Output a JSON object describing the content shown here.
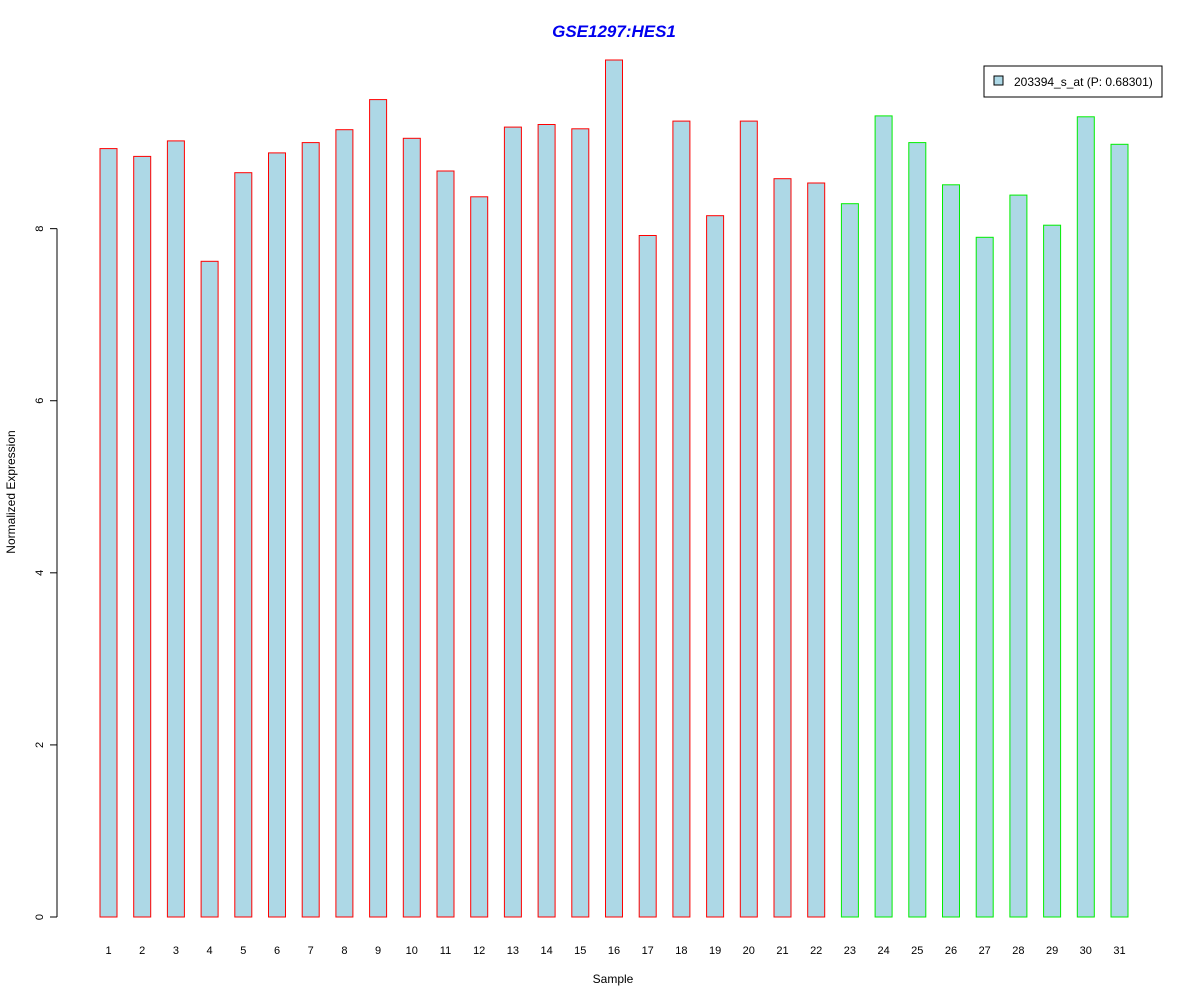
{
  "chart_data": {
    "type": "bar",
    "title": "GSE1297:HES1",
    "xlabel": "Sample",
    "ylabel": "Normalized Expression",
    "categories": [
      "1",
      "2",
      "3",
      "4",
      "5",
      "6",
      "7",
      "8",
      "9",
      "10",
      "11",
      "12",
      "13",
      "14",
      "15",
      "16",
      "17",
      "18",
      "19",
      "20",
      "21",
      "22",
      "23",
      "24",
      "25",
      "26",
      "27",
      "28",
      "29",
      "30",
      "31"
    ],
    "series": [
      {
        "name": "203394_s_at (P: 0.68301)",
        "values": [
          8.93,
          8.84,
          9.02,
          7.62,
          8.65,
          8.88,
          9.0,
          9.15,
          9.5,
          9.05,
          8.67,
          8.37,
          9.18,
          9.21,
          9.16,
          9.96,
          7.92,
          9.25,
          8.15,
          9.25,
          8.58,
          8.53,
          8.29,
          9.31,
          9.0,
          8.51,
          7.9,
          8.39,
          8.04,
          9.3,
          8.98
        ]
      }
    ],
    "groups": [
      {
        "samples": "1-22",
        "border_color": "#ff0000"
      },
      {
        "samples": "23-31",
        "border_color": "#00ee00"
      }
    ],
    "y_ticks": [
      0,
      2,
      4,
      6,
      8
    ],
    "ylim": [
      0,
      9.96
    ],
    "grid": false,
    "legend_position": "top-right",
    "colors": {
      "bar_fill": "#add8e6",
      "group1_border": "#ff0000",
      "group2_border": "#00ee00",
      "title": "#0000ee"
    }
  }
}
